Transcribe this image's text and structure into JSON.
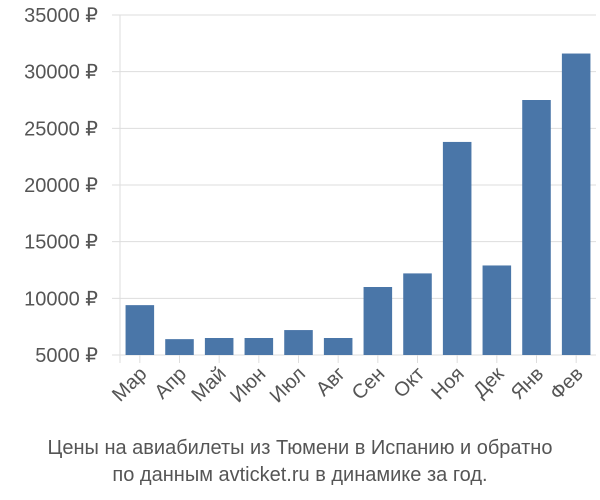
{
  "chart_data": {
    "type": "bar",
    "categories": [
      "Мар",
      "Апр",
      "Май",
      "Июн",
      "Июл",
      "Авг",
      "Сен",
      "Окт",
      "Ноя",
      "Дек",
      "Янв",
      "Фев"
    ],
    "values": [
      9400,
      6400,
      6500,
      6500,
      7200,
      6500,
      11000,
      12200,
      23800,
      12900,
      27500,
      31600
    ],
    "ylim": [
      5000,
      35000
    ],
    "yticks": [
      5000,
      10000,
      15000,
      20000,
      25000,
      30000,
      35000
    ],
    "ytick_labels": [
      "5000 ₽",
      "10000 ₽",
      "15000 ₽",
      "20000 ₽",
      "25000 ₽",
      "30000 ₽",
      "35000 ₽"
    ],
    "grid": true,
    "bar_color": "#4a76a8",
    "grid_color": "#dddddd",
    "caption_lines": [
      "Цены на авиабилеты из Тюмени в Испанию и обратно",
      "по данным avticket.ru в динамике за год."
    ]
  }
}
